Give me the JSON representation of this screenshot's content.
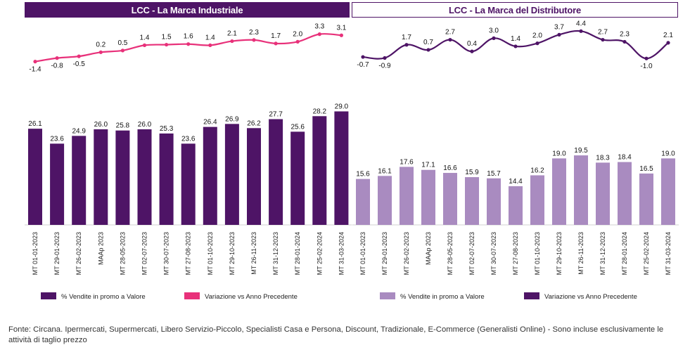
{
  "header_left": "LCC - La Marca Industriale",
  "header_right": "LCC - La Marca del Distributore",
  "footnote": "Fonte: Circana. Ipermercati, Supermercati, Libero Servizio-Piccolo, Specialisti Casa e Persona, Discount, Tradizionale, E-Commerce (Generalisti Online) - Sono incluse esclusivamente le attività di taglio prezzo",
  "chart_data": [
    {
      "type": "bar",
      "title": "LCC - La Marca Industriale",
      "categories": [
        "MT 01-01-2023",
        "MT 29-01-2023",
        "MT 26-02-2023",
        "MAAp 2023",
        "MT 28-05-2023",
        "MT 02-07-2023",
        "MT 30-07-2023",
        "MT 27-08-2023",
        "MT 01-10-2023",
        "MT 29-10-2023",
        "MT 26-11-2023",
        "MT 31-12-2023",
        "MT 28-01-2024",
        "MT 25-02-2024",
        "MT 31-03-2024"
      ],
      "series": [
        {
          "name": "% Vendite in promo a Valore",
          "type": "bar",
          "color": "#4e1466",
          "values": [
            26.1,
            23.6,
            24.9,
            26.0,
            25.8,
            26.0,
            25.3,
            23.6,
            26.4,
            26.9,
            26.2,
            27.7,
            25.6,
            28.2,
            29.0
          ]
        },
        {
          "name": "Variazione vs Anno Precedente",
          "type": "line",
          "color": "#e8317a",
          "values": [
            -1.4,
            -0.8,
            -0.5,
            0.2,
            0.5,
            1.4,
            1.5,
            1.6,
            1.4,
            2.1,
            2.3,
            1.7,
            2.0,
            3.3,
            3.1
          ]
        }
      ],
      "legend_position": "bottom"
    },
    {
      "type": "bar",
      "title": "LCC - La Marca del Distributore",
      "categories": [
        "MT 01-01-2023",
        "MT 29-01-2023",
        "MT 26-02-2023",
        "MAAp 2023",
        "MT 28-05-2023",
        "MT 02-07-2023",
        "MT 30-07-2023",
        "MT 27-08-2023",
        "MT 01-10-2023",
        "MT 29-10-2023",
        "MT 26-11-2023",
        "MT 31-12-2023",
        "MT 28-01-2024",
        "MT 25-02-2024",
        "MT 31-03-2024"
      ],
      "series": [
        {
          "name": "% Vendite in promo a Valore",
          "type": "bar",
          "color": "#a98bc0",
          "values": [
            15.6,
            16.1,
            17.6,
            17.1,
            16.6,
            15.9,
            15.7,
            14.4,
            16.2,
            19.0,
            19.5,
            18.3,
            18.4,
            16.5,
            19.0
          ]
        },
        {
          "name": "Variazione vs Anno Precedente",
          "type": "line",
          "color": "#4e1466",
          "values": [
            -0.7,
            -0.9,
            1.7,
            0.7,
            2.7,
            0.4,
            3.0,
            1.4,
            2.0,
            3.7,
            4.4,
            2.7,
            2.3,
            -1.0,
            2.1
          ]
        }
      ],
      "legend_position": "bottom"
    }
  ]
}
